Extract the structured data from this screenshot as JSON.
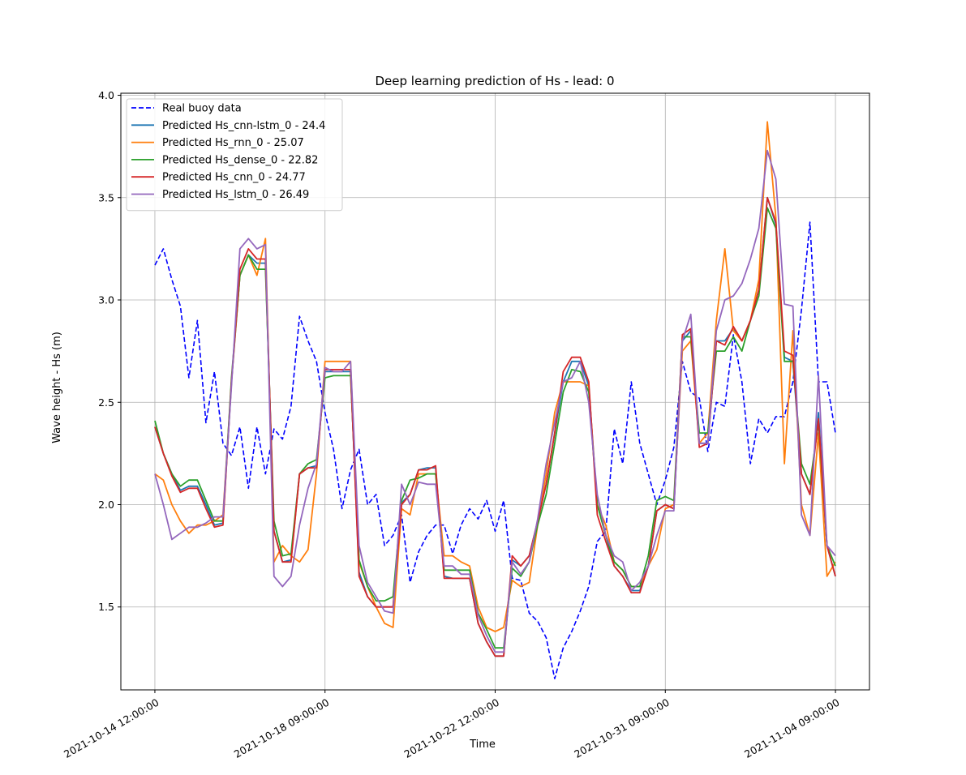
{
  "chart_data": {
    "type": "line",
    "title": "Deep learning prediction of Hs - lead: 0",
    "xlabel": "Time",
    "ylabel": "Wave height - Hs (m)",
    "ylim": [
      1.095,
      4.01
    ],
    "yticks": [
      1.5,
      2.0,
      2.5,
      3.0,
      3.5,
      4.0
    ],
    "ytick_labels": [
      "1.5",
      "2.0",
      "2.5",
      "3.0",
      "3.5",
      "4.0"
    ],
    "x": [
      0,
      2,
      4,
      6,
      8,
      10,
      12,
      14,
      16,
      18,
      20,
      22,
      24,
      26,
      28,
      30,
      32,
      34,
      36,
      38,
      40,
      42,
      44,
      46,
      48,
      50,
      52,
      54,
      56,
      58,
      60,
      62,
      64,
      66,
      68,
      70,
      72,
      74,
      76,
      78,
      80,
      82,
      84,
      86,
      88,
      90,
      92,
      94,
      96,
      98,
      100,
      102,
      104,
      106,
      108,
      110,
      112,
      114,
      116,
      118,
      120,
      122,
      124,
      126,
      128,
      130,
      132,
      134,
      136,
      138,
      140,
      142,
      144,
      146,
      148,
      150,
      152,
      154,
      156,
      158,
      160
    ],
    "xlim": [
      -8,
      168
    ],
    "xticks": [
      0,
      40,
      80,
      120,
      160
    ],
    "xtick_labels": [
      "2021-10-14 12:00:00",
      "2021-10-18 09:00:00",
      "2021-10-22 12:00:00",
      "2021-10-31 09:00:00",
      "2021-11-04 09:00:00"
    ],
    "grid": true,
    "legend": "upper left",
    "series": [
      {
        "name": "Real buoy data",
        "color": "#0000ff",
        "dash": true,
        "values": [
          3.17,
          3.25,
          3.1,
          2.97,
          2.62,
          2.9,
          2.4,
          2.65,
          2.3,
          2.24,
          2.38,
          2.08,
          2.38,
          2.15,
          2.37,
          2.32,
          2.48,
          2.92,
          2.8,
          2.7,
          2.45,
          2.27,
          1.98,
          2.17,
          2.27,
          2.0,
          2.05,
          1.8,
          1.85,
          1.95,
          1.62,
          1.77,
          1.85,
          1.9,
          1.9,
          1.76,
          1.9,
          1.98,
          1.93,
          2.02,
          1.87,
          2.02,
          1.64,
          1.63,
          1.47,
          1.43,
          1.35,
          1.15,
          1.3,
          1.38,
          1.48,
          1.6,
          1.82,
          1.87,
          2.37,
          2.2,
          2.6,
          2.3,
          2.15,
          2.0,
          2.12,
          2.28,
          2.7,
          2.55,
          2.52,
          2.26,
          2.5,
          2.48,
          2.83,
          2.6,
          2.2,
          2.42,
          2.35,
          2.43,
          2.43,
          2.6,
          2.95,
          3.38,
          2.6,
          2.6,
          2.35
        ]
      },
      {
        "name": "Predicted Hs_cnn-lstm_0 - 24.4",
        "color": "#1f77b4",
        "dash": false,
        "values": [
          2.38,
          2.25,
          2.15,
          2.07,
          2.09,
          2.09,
          2.0,
          1.9,
          1.91,
          2.6,
          3.12,
          3.22,
          3.18,
          3.18,
          1.87,
          1.72,
          1.73,
          2.15,
          2.18,
          2.19,
          2.65,
          2.65,
          2.65,
          2.65,
          1.67,
          1.55,
          1.5,
          1.5,
          1.5,
          2.01,
          2.05,
          2.17,
          2.18,
          2.18,
          1.65,
          1.64,
          1.64,
          1.64,
          1.42,
          1.33,
          1.26,
          1.26,
          1.73,
          1.7,
          1.75,
          1.92,
          2.1,
          2.35,
          2.6,
          2.7,
          2.7,
          2.58,
          2.0,
          1.85,
          1.7,
          1.65,
          1.58,
          1.58,
          1.7,
          1.97,
          2.0,
          1.98,
          2.8,
          2.85,
          2.3,
          2.3,
          2.8,
          2.8,
          2.86,
          2.8,
          2.9,
          3.05,
          3.5,
          3.37,
          2.72,
          2.7,
          2.15,
          2.05,
          2.45,
          1.8,
          1.65
        ]
      },
      {
        "name": "Predicted Hs_rnn_0 - 25.07",
        "color": "#ff7f0e",
        "dash": false,
        "values": [
          2.15,
          2.12,
          2.0,
          1.92,
          1.86,
          1.9,
          1.9,
          1.92,
          1.95,
          2.6,
          3.12,
          3.22,
          3.12,
          3.3,
          1.72,
          1.8,
          1.75,
          1.72,
          1.78,
          2.15,
          2.7,
          2.7,
          2.7,
          2.7,
          1.72,
          1.6,
          1.5,
          1.42,
          1.4,
          1.98,
          1.95,
          2.15,
          2.15,
          2.15,
          1.75,
          1.75,
          1.72,
          1.7,
          1.5,
          1.4,
          1.38,
          1.4,
          1.63,
          1.6,
          1.62,
          1.9,
          2.15,
          2.45,
          2.6,
          2.6,
          2.6,
          2.58,
          2.0,
          1.9,
          1.72,
          1.68,
          1.6,
          1.6,
          1.7,
          1.78,
          1.98,
          2.0,
          2.75,
          2.8,
          2.3,
          2.35,
          2.9,
          3.25,
          2.85,
          2.8,
          2.9,
          3.1,
          3.87,
          3.4,
          2.2,
          2.85,
          2.0,
          1.85,
          2.35,
          1.65,
          1.72
        ]
      },
      {
        "name": "Predicted Hs_dense_0 - 22.82",
        "color": "#2ca02c",
        "dash": false,
        "values": [
          2.41,
          2.25,
          2.15,
          2.09,
          2.12,
          2.12,
          2.02,
          1.92,
          1.92,
          2.62,
          3.12,
          3.22,
          3.15,
          3.15,
          1.92,
          1.75,
          1.76,
          2.15,
          2.2,
          2.22,
          2.62,
          2.63,
          2.63,
          2.63,
          1.73,
          1.6,
          1.53,
          1.53,
          1.55,
          2.02,
          2.12,
          2.13,
          2.15,
          2.15,
          1.68,
          1.68,
          1.68,
          1.68,
          1.47,
          1.39,
          1.3,
          1.3,
          1.69,
          1.65,
          1.72,
          1.9,
          2.05,
          2.3,
          2.55,
          2.66,
          2.65,
          2.55,
          2.0,
          1.85,
          1.72,
          1.68,
          1.6,
          1.6,
          1.75,
          2.02,
          2.04,
          2.02,
          2.82,
          2.82,
          2.35,
          2.35,
          2.75,
          2.75,
          2.82,
          2.75,
          2.9,
          3.02,
          3.45,
          3.35,
          2.7,
          2.7,
          2.2,
          2.1,
          2.4,
          1.8,
          1.7
        ]
      },
      {
        "name": "Predicted Hs_cnn_0 - 24.77",
        "color": "#d62728",
        "dash": false,
        "values": [
          2.38,
          2.25,
          2.14,
          2.06,
          2.08,
          2.08,
          1.98,
          1.89,
          1.9,
          2.6,
          3.15,
          3.25,
          3.2,
          3.2,
          1.87,
          1.72,
          1.72,
          2.15,
          2.18,
          2.18,
          2.66,
          2.66,
          2.66,
          2.66,
          1.65,
          1.55,
          1.5,
          1.5,
          1.5,
          2.0,
          2.05,
          2.17,
          2.17,
          2.19,
          1.64,
          1.64,
          1.64,
          1.64,
          1.42,
          1.33,
          1.26,
          1.26,
          1.75,
          1.7,
          1.75,
          1.92,
          2.1,
          2.35,
          2.65,
          2.72,
          2.72,
          2.6,
          1.95,
          1.82,
          1.7,
          1.65,
          1.57,
          1.57,
          1.7,
          1.97,
          2.0,
          1.98,
          2.83,
          2.86,
          2.28,
          2.3,
          2.8,
          2.78,
          2.87,
          2.8,
          2.9,
          3.05,
          3.5,
          3.38,
          2.75,
          2.73,
          2.15,
          2.05,
          2.42,
          1.8,
          1.65
        ]
      },
      {
        "name": "Predicted Hs_lstm_0 - 26.49",
        "color": "#9467bd",
        "dash": false,
        "values": [
          2.15,
          2.0,
          1.83,
          1.86,
          1.89,
          1.89,
          1.91,
          1.94,
          1.94,
          2.58,
          3.25,
          3.3,
          3.25,
          3.27,
          1.65,
          1.6,
          1.65,
          1.9,
          2.08,
          2.2,
          2.67,
          2.65,
          2.65,
          2.7,
          1.8,
          1.62,
          1.55,
          1.48,
          1.47,
          2.1,
          2.0,
          2.11,
          2.1,
          2.1,
          1.7,
          1.7,
          1.66,
          1.66,
          1.46,
          1.36,
          1.28,
          1.28,
          1.72,
          1.66,
          1.72,
          1.93,
          2.2,
          2.4,
          2.6,
          2.62,
          2.7,
          2.5,
          2.05,
          1.85,
          1.75,
          1.72,
          1.58,
          1.62,
          1.7,
          1.85,
          1.97,
          1.97,
          2.8,
          2.93,
          2.3,
          2.3,
          2.85,
          3.0,
          3.02,
          3.08,
          3.2,
          3.35,
          3.73,
          3.59,
          2.98,
          2.97,
          1.95,
          1.85,
          2.63,
          1.8,
          1.75
        ]
      }
    ]
  }
}
